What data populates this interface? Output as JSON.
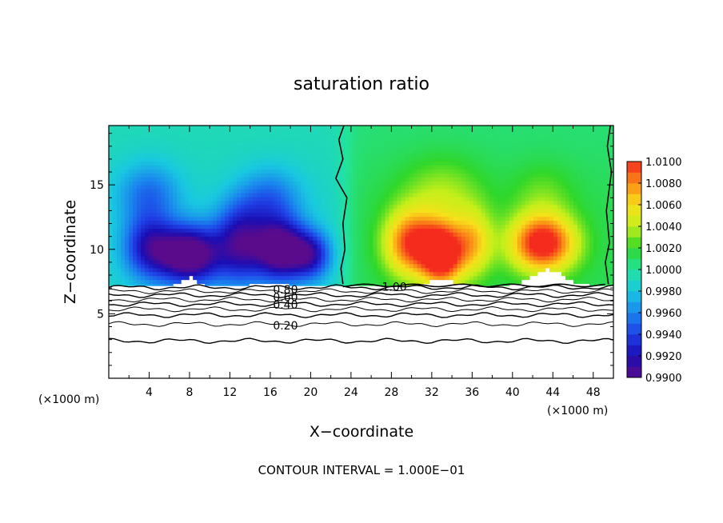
{
  "chart_data": {
    "type": "heatmap",
    "title": "saturation ratio",
    "xlabel": "X−coordinate",
    "ylabel": "Z−coordinate",
    "x_unit": "(×1000 m)",
    "x_unit_right": "(×1000 m)",
    "xlim": [
      0,
      50
    ],
    "ylim": [
      0,
      19.6
    ],
    "x_ticks": [
      4,
      8,
      12,
      16,
      20,
      24,
      28,
      32,
      36,
      40,
      44,
      48
    ],
    "y_ticks": [
      5,
      10,
      15
    ],
    "colorbar": {
      "levels": [
        "0.9900",
        "0.9920",
        "0.9940",
        "0.9960",
        "0.9980",
        "1.0000",
        "1.0020",
        "1.0040",
        "1.0060",
        "1.0080",
        "1.0100"
      ],
      "range": [
        0.99,
        1.01
      ]
    },
    "contour_labels": [
      {
        "text": "0.80",
        "x": 17.5,
        "y": 6.9
      },
      {
        "text": "0.60",
        "x": 17.5,
        "y": 6.3
      },
      {
        "text": "0.40",
        "x": 17.5,
        "y": 5.7
      },
      {
        "text": "0.20",
        "x": 17.5,
        "y": 4.1
      },
      {
        "text": "1.00",
        "x": 28.3,
        "y": 7.1
      }
    ],
    "footer": "CONTOUR INTERVAL = 1.000E−01",
    "sat_field": {
      "description_blobs": [
        {
          "x": 8,
          "z": 9.6,
          "amp": -1.0,
          "sx": 3.0,
          "sz": 2.2
        },
        {
          "x": 4,
          "z": 10.2,
          "amp": -0.6,
          "sx": 2.5,
          "sz": 2.4
        },
        {
          "x": 13,
          "z": 10.5,
          "amp": -0.7,
          "sx": 2.5,
          "sz": 3.0
        },
        {
          "x": 17,
          "z": 10.0,
          "amp": -0.95,
          "sx": 2.5,
          "sz": 2.3
        },
        {
          "x": 20,
          "z": 9.6,
          "amp": -0.6,
          "sx": 2.0,
          "sz": 1.8
        },
        {
          "x": 4,
          "z": 14.5,
          "amp": -0.35,
          "sx": 3.0,
          "sz": 2.5
        },
        {
          "x": 16,
          "z": 14.0,
          "amp": -0.35,
          "sx": 3.0,
          "sz": 2.5
        },
        {
          "x": 30,
          "z": 10.5,
          "amp": 0.8,
          "sx": 2.6,
          "sz": 2.5
        },
        {
          "x": 33,
          "z": 9.6,
          "amp": 1.0,
          "sx": 2.0,
          "sz": 2.3
        },
        {
          "x": 36,
          "z": 10.5,
          "amp": 0.5,
          "sx": 2.0,
          "sz": 2.5
        },
        {
          "x": 43,
          "z": 10.5,
          "amp": 0.95,
          "sx": 3.2,
          "sz": 2.2
        },
        {
          "x": 33,
          "z": 14.5,
          "amp": 0.25,
          "sx": 4.0,
          "sz": 3.0
        },
        {
          "x": 43,
          "z": 14.5,
          "amp": 0.15,
          "sx": 3.0,
          "sz": 2.5
        }
      ]
    }
  }
}
